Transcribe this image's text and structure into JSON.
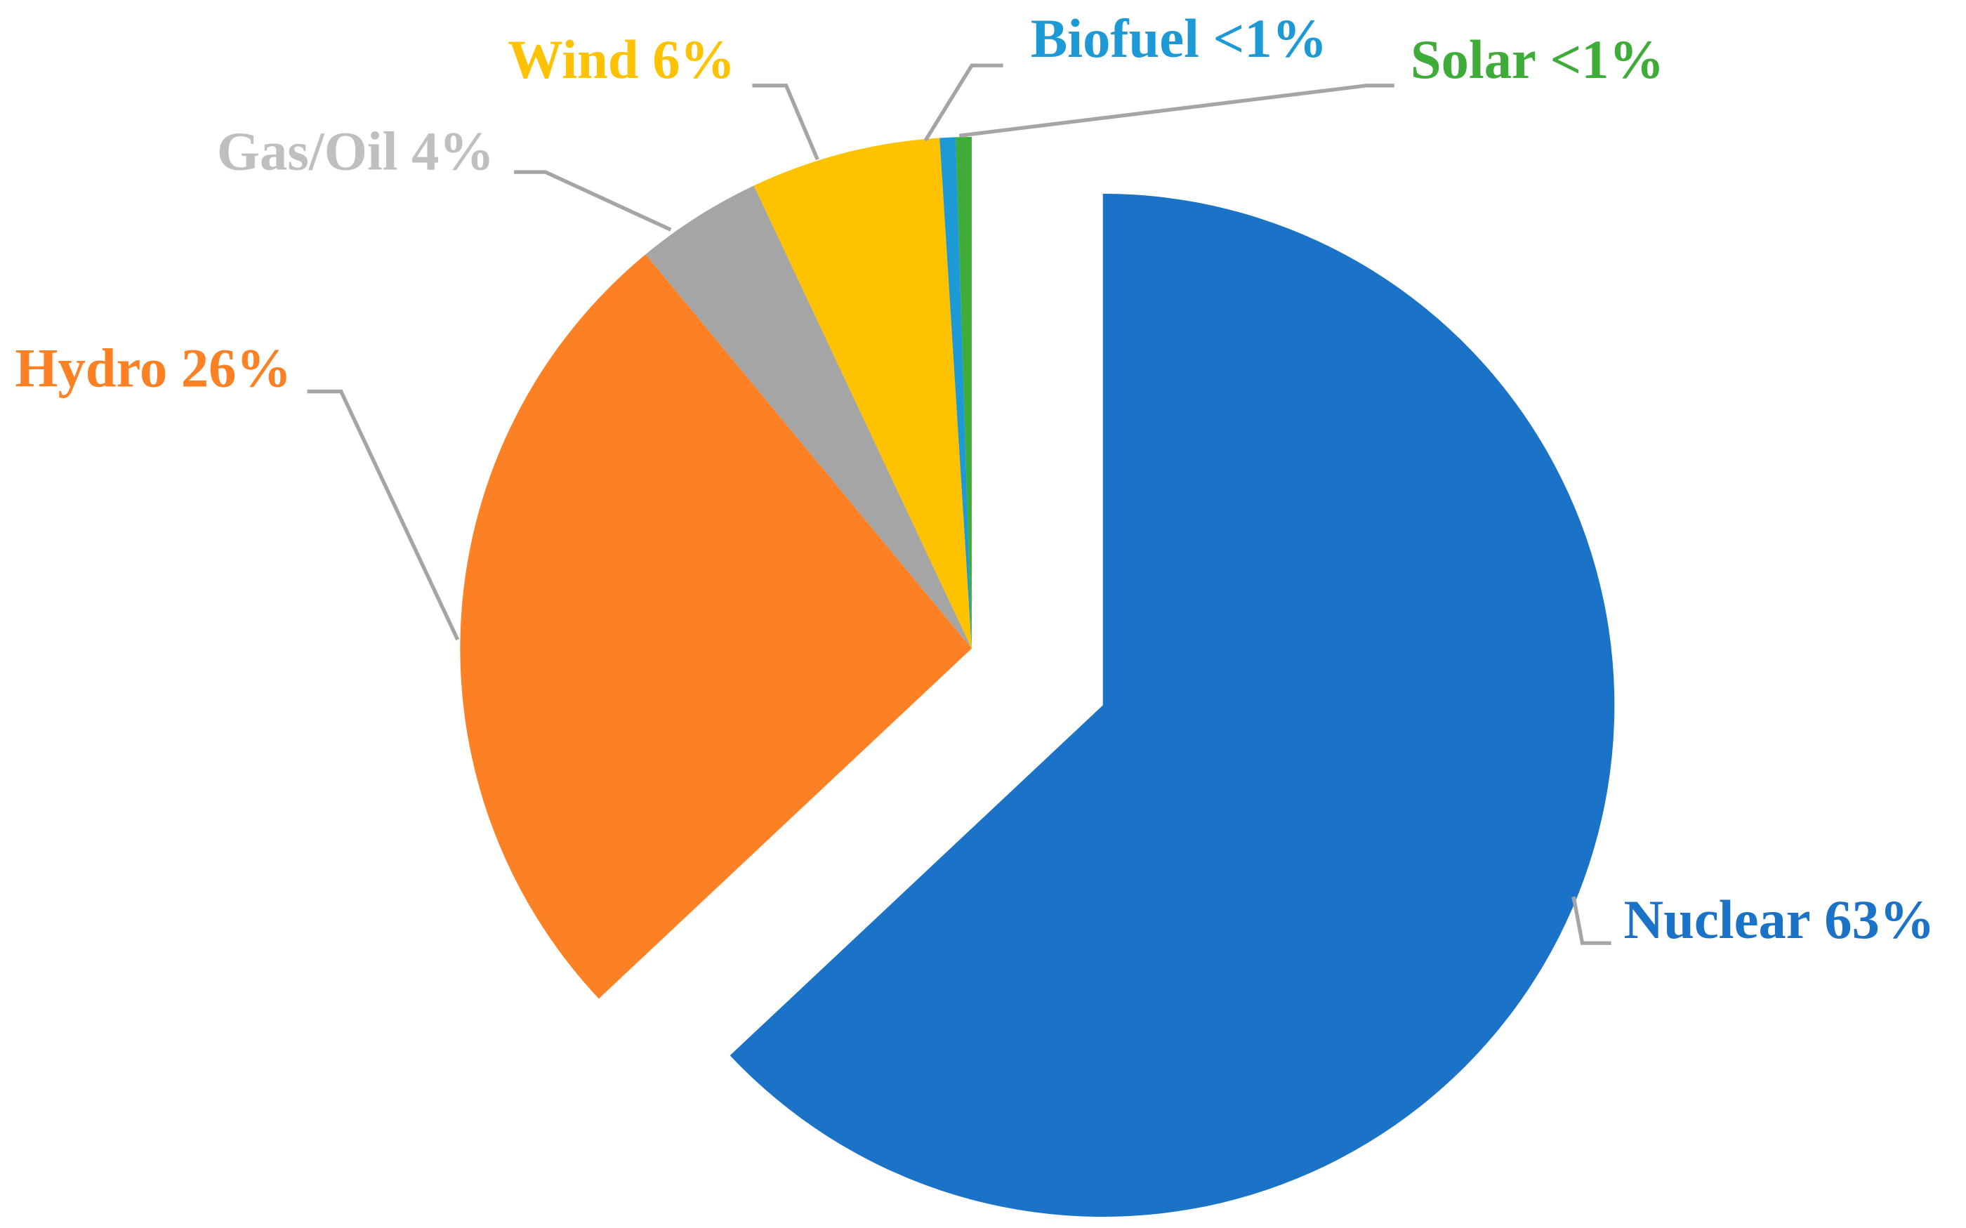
{
  "chart_data": {
    "type": "pie",
    "categories": [
      "Nuclear",
      "Hydro",
      "Gas/Oil",
      "Wind",
      "Biofuel",
      "Solar"
    ],
    "values": [
      63,
      26,
      4,
      6,
      0.5,
      0.5
    ],
    "value_labels": [
      "63%",
      "26%",
      "4%",
      "6%",
      "<1%",
      "<1%"
    ],
    "colors": [
      "#1a73c6",
      "#fc8125",
      "#a5a5a5",
      "#fec200",
      "#1d9ad6",
      "#3fac3a"
    ],
    "label_colors": [
      "#1a73c6",
      "#fc8125",
      "#bfbfbf",
      "#fec200",
      "#1d9ad6",
      "#3fac3a"
    ],
    "exploded": [
      0
    ]
  }
}
